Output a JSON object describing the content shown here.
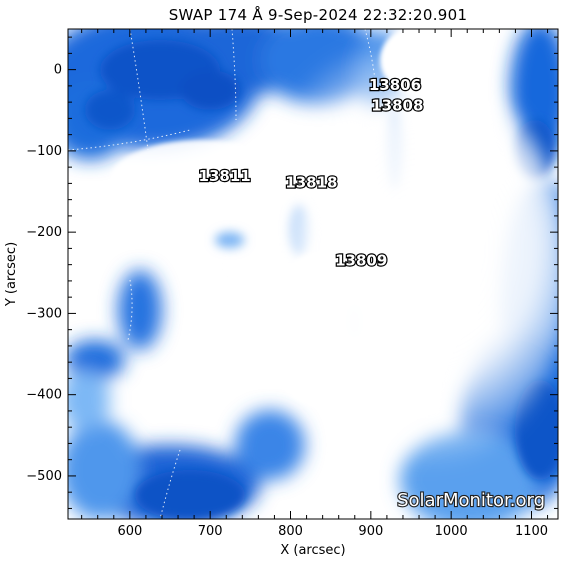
{
  "title": "SWAP 174 Å  9-Sep-2024 22:32:20.901",
  "x_axis": {
    "label": "X (arcsec)",
    "range": [
      523,
      1133
    ],
    "ticks": [
      600,
      700,
      800,
      900,
      1000,
      1100
    ]
  },
  "y_axis": {
    "label": "Y (arcsec)",
    "range": [
      -553,
      50
    ],
    "ticks": [
      0,
      -100,
      -200,
      -300,
      -400,
      -500
    ]
  },
  "active_regions": [
    {
      "id": "13806",
      "x": 930,
      "y": -25
    },
    {
      "id": "13808",
      "x": 933,
      "y": -50
    },
    {
      "id": "13811",
      "x": 718,
      "y": -137
    },
    {
      "id": "13818",
      "x": 826,
      "y": -145
    },
    {
      "id": "13809",
      "x": 888,
      "y": -241
    }
  ],
  "watermark": "SolarMonitor.org",
  "colors": {
    "deep_blue": "#0a4fc6",
    "mid_blue": "#1c72e0",
    "light_blue": "#8ec4f8",
    "bright": "#ffffff"
  }
}
